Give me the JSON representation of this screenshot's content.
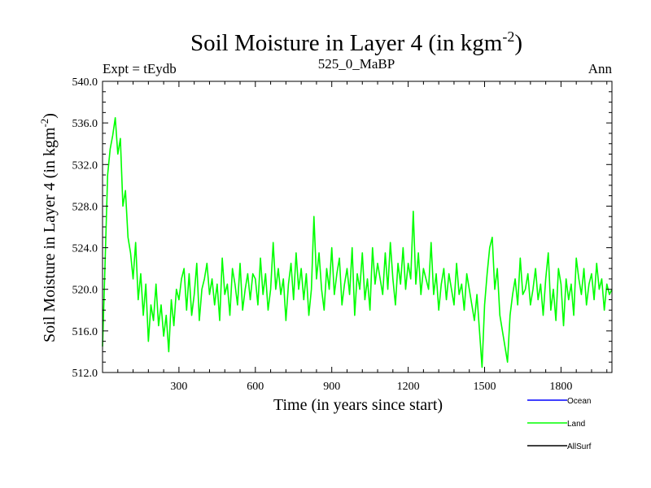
{
  "chart_data": {
    "type": "line",
    "title": "Soil Moisture in Layer 4 (in kgm",
    "title_sup": "-2",
    "title_end": ")",
    "subtitle_left": "Expt = tEydb",
    "subtitle_center": "525_0_MaBP",
    "subtitle_right": "Ann",
    "xlabel": "Time (in years since start)",
    "ylabel": "Soil Moisture in Layer 4 (in kgm",
    "ylabel_sup": "-2",
    "ylabel_end": ")",
    "xlim": [
      0,
      2000
    ],
    "ylim": [
      512,
      540
    ],
    "xticks": [
      300,
      600,
      900,
      1200,
      1500,
      1800
    ],
    "xtick_labels": [
      "300",
      "600",
      "900",
      "1200",
      "1500",
      "1800"
    ],
    "yticks": [
      512,
      516,
      520,
      524,
      528,
      532,
      536,
      540
    ],
    "ytick_labels": [
      "512.0",
      "516.0",
      "520.0",
      "524.0",
      "528.0",
      "532.0",
      "536.0",
      "540.0"
    ],
    "legend": [
      {
        "name": "Ocean",
        "color": "#0000ff"
      },
      {
        "name": "Land",
        "color": "#00ff00"
      },
      {
        "name": "AllSurf",
        "color": "#000000"
      }
    ],
    "series": [
      {
        "name": "Land",
        "color": "#00ff00",
        "x": [
          0,
          10,
          20,
          30,
          40,
          50,
          60,
          70,
          80,
          90,
          100,
          110,
          120,
          130,
          140,
          150,
          160,
          170,
          180,
          190,
          200,
          210,
          220,
          230,
          240,
          250,
          260,
          270,
          280,
          290,
          300,
          310,
          320,
          330,
          340,
          350,
          360,
          370,
          380,
          390,
          400,
          410,
          420,
          430,
          440,
          450,
          460,
          470,
          480,
          490,
          500,
          510,
          520,
          530,
          540,
          550,
          560,
          570,
          580,
          590,
          600,
          610,
          620,
          630,
          640,
          650,
          660,
          670,
          680,
          690,
          700,
          710,
          720,
          730,
          740,
          750,
          760,
          770,
          780,
          790,
          800,
          810,
          820,
          830,
          840,
          850,
          860,
          870,
          880,
          890,
          900,
          910,
          920,
          930,
          940,
          950,
          960,
          970,
          980,
          990,
          1000,
          1010,
          1020,
          1030,
          1040,
          1050,
          1060,
          1070,
          1080,
          1090,
          1100,
          1110,
          1120,
          1130,
          1140,
          1150,
          1160,
          1170,
          1180,
          1190,
          1200,
          1210,
          1220,
          1230,
          1240,
          1250,
          1260,
          1270,
          1280,
          1290,
          1300,
          1310,
          1320,
          1330,
          1340,
          1350,
          1360,
          1370,
          1380,
          1390,
          1400,
          1410,
          1420,
          1430,
          1440,
          1450,
          1460,
          1470,
          1480,
          1490,
          1500,
          1510,
          1520,
          1530,
          1540,
          1550,
          1560,
          1570,
          1580,
          1590,
          1600,
          1610,
          1620,
          1630,
          1640,
          1650,
          1660,
          1670,
          1680,
          1690,
          1700,
          1710,
          1720,
          1730,
          1740,
          1750,
          1760,
          1770,
          1780,
          1790,
          1800,
          1810,
          1820,
          1830,
          1840,
          1850,
          1860,
          1870,
          1880,
          1890,
          1900,
          1910,
          1920,
          1930,
          1940,
          1950,
          1960,
          1970,
          1980,
          1990,
          2000
        ],
        "values": [
          514.5,
          522.5,
          531.0,
          533.5,
          534.8,
          536.5,
          533.0,
          534.5,
          528.0,
          529.5,
          525.0,
          523.5,
          521.0,
          524.5,
          519.0,
          521.5,
          517.5,
          520.5,
          515.0,
          518.5,
          517.0,
          520.5,
          516.5,
          518.5,
          515.5,
          517.5,
          514.0,
          519.0,
          516.5,
          520.0,
          519.0,
          521.0,
          522.0,
          518.0,
          521.5,
          517.5,
          519.5,
          522.5,
          517.0,
          520.0,
          521.0,
          522.5,
          519.5,
          521.0,
          518.5,
          520.5,
          517.0,
          523.0,
          519.5,
          520.5,
          517.5,
          522.0,
          520.5,
          518.5,
          522.5,
          518.0,
          520.0,
          521.5,
          519.0,
          521.5,
          521.0,
          518.5,
          523.0,
          519.5,
          521.5,
          518.0,
          520.0,
          524.5,
          520.0,
          522.0,
          519.5,
          521.0,
          517.0,
          520.5,
          522.5,
          519.0,
          523.5,
          520.0,
          522.0,
          519.0,
          521.5,
          517.5,
          520.0,
          527.0,
          521.0,
          523.5,
          520.0,
          518.0,
          522.0,
          520.0,
          524.0,
          519.5,
          521.5,
          523.0,
          518.5,
          520.5,
          522.0,
          519.5,
          524.0,
          517.5,
          521.5,
          520.0,
          523.5,
          519.0,
          521.0,
          518.0,
          524.0,
          520.5,
          522.5,
          521.0,
          519.5,
          523.5,
          520.0,
          524.5,
          521.0,
          518.5,
          522.5,
          520.5,
          524.0,
          520.0,
          522.5,
          521.0,
          527.5,
          520.5,
          523.5,
          519.5,
          522.0,
          521.0,
          520.0,
          524.5,
          519.5,
          521.5,
          518.0,
          520.5,
          522.0,
          519.0,
          521.5,
          520.0,
          518.5,
          522.5,
          519.5,
          520.5,
          518.0,
          521.5,
          520.0,
          518.5,
          517.0,
          519.5,
          516.0,
          512.5,
          518.5,
          521.5,
          524.0,
          525.0,
          520.0,
          522.0,
          517.5,
          516.0,
          514.5,
          513.0,
          517.5,
          519.5,
          521.0,
          518.5,
          523.0,
          519.5,
          520.0,
          521.5,
          518.5,
          520.0,
          522.0,
          519.0,
          520.5,
          517.5,
          521.0,
          523.5,
          518.0,
          520.0,
          517.0,
          522.0,
          520.5,
          516.5,
          521.0,
          519.0,
          520.5,
          517.5,
          523.0,
          521.0,
          519.5,
          522.0,
          518.5,
          520.5,
          521.5,
          519.0,
          522.5,
          520.0,
          521.0,
          518.0,
          520.5,
          519.5,
          520.0
        ]
      }
    ]
  }
}
